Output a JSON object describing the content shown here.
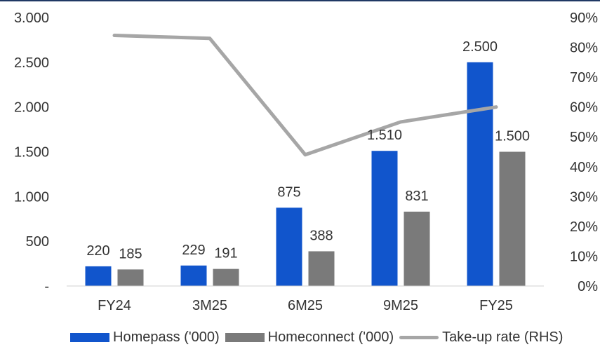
{
  "chart_data": {
    "type": "bar",
    "categories": [
      "FY24",
      "3M25",
      "6M25",
      "9M25",
      "FY25"
    ],
    "series": [
      {
        "name": "Homepass ('000)",
        "type": "bar",
        "axis": "left",
        "color": "#1155cc",
        "values": [
          220,
          229,
          875,
          1510,
          2500
        ],
        "labels": [
          "220",
          "229",
          "875",
          "1.510",
          "2.500"
        ]
      },
      {
        "name": "Homeconnect ('000)",
        "type": "bar",
        "axis": "left",
        "color": "#7a7a7a",
        "values": [
          185,
          191,
          388,
          831,
          1500
        ],
        "labels": [
          "185",
          "191",
          "388",
          "831",
          "1.500"
        ]
      },
      {
        "name": "Take-up rate (RHS)",
        "type": "line",
        "axis": "right",
        "color": "#a6a6a6",
        "values": [
          84,
          83,
          44,
          55,
          60
        ]
      }
    ],
    "y_left": {
      "min": 0,
      "max": 3000,
      "ticks": [
        0,
        500,
        1000,
        1500,
        2000,
        2500,
        3000
      ],
      "tick_labels": [
        "-",
        "500",
        "1.000",
        "1.500",
        "2.000",
        "2.500",
        "3.000"
      ]
    },
    "y_right": {
      "min": 0,
      "max": 90,
      "ticks": [
        0,
        10,
        20,
        30,
        40,
        50,
        60,
        70,
        80,
        90
      ],
      "tick_labels": [
        "0%",
        "10%",
        "20%",
        "30%",
        "40%",
        "50%",
        "60%",
        "70%",
        "80%",
        "90%"
      ]
    },
    "grid": false,
    "legend_position": "bottom"
  }
}
